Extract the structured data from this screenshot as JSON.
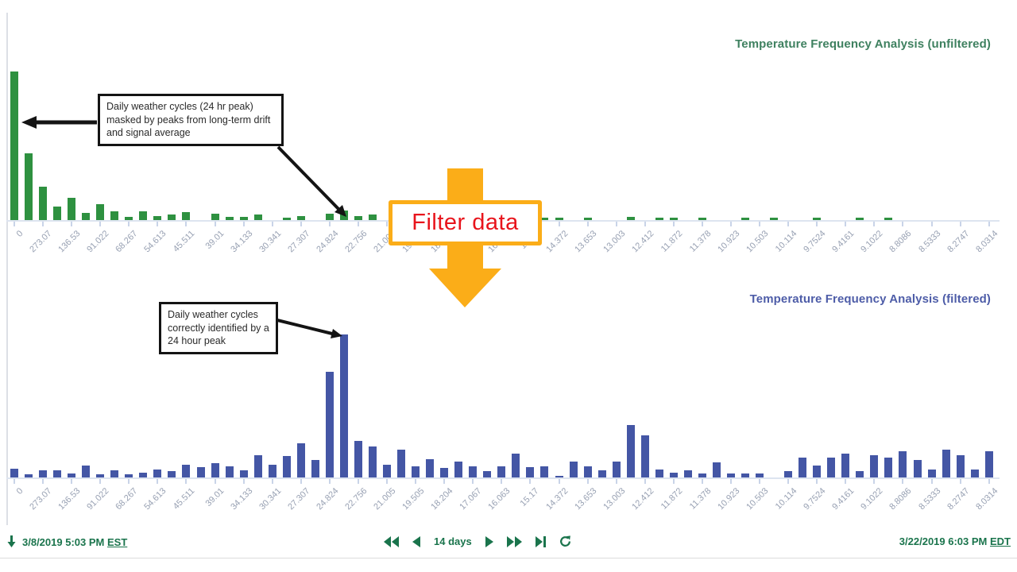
{
  "chart_data": [
    {
      "id": "unfiltered",
      "type": "bar",
      "title": "Temperature Frequency Analysis (unfiltered)",
      "bar_color": "#2e9140",
      "title_color": "#3f8160",
      "legend": "none",
      "grid": "off",
      "y_axis": "unlabeled (relative amplitude, px-estimated)",
      "x_tick_labels": [
        "0",
        "273.07",
        "136.53",
        "91.022",
        "68.267",
        "54.613",
        "45.511",
        "39.01",
        "34.133",
        "30.341",
        "27.307",
        "24.824",
        "22.756",
        "21.005",
        "19.505",
        "18.204",
        "17.067",
        "16.063",
        "15.17",
        "14.372",
        "13.653",
        "13.003",
        "12.412",
        "11.872",
        "11.378",
        "10.923",
        "10.503",
        "10.114",
        "9.7524",
        "9.4161",
        "9.1022",
        "8.8086",
        "8.5333",
        "8.2747",
        "8.0314"
      ],
      "bars_per_tick": 2,
      "values": [
        187,
        84,
        42,
        17,
        28,
        9,
        20,
        11,
        4,
        11,
        5,
        7,
        10,
        0,
        8,
        4,
        4,
        7,
        0,
        3,
        5,
        0,
        8,
        12,
        5,
        7,
        0,
        0,
        0,
        0,
        0,
        0,
        0,
        0,
        0,
        0,
        0,
        3,
        3,
        0,
        3,
        0,
        0,
        4,
        0,
        3,
        3,
        0,
        3,
        0,
        0,
        3,
        0,
        3,
        0,
        0,
        3,
        0,
        0,
        3,
        0,
        3,
        0,
        0,
        0,
        0,
        0,
        0,
        0
      ]
    },
    {
      "id": "filtered",
      "type": "bar",
      "title": "Temperature Frequency Analysis (filtered)",
      "bar_color": "#4456a5",
      "title_color": "#4e5da8",
      "legend": "none",
      "grid": "off",
      "y_axis": "unlabeled (relative amplitude, px-estimated)",
      "x_tick_labels": [
        "0",
        "273.07",
        "136.53",
        "91.022",
        "68.267",
        "54.613",
        "45.511",
        "39.01",
        "34.133",
        "30.341",
        "27.307",
        "24.824",
        "22.756",
        "21.005",
        "19.505",
        "18.204",
        "17.067",
        "16.063",
        "15.17",
        "14.372",
        "13.653",
        "13.003",
        "12.412",
        "11.872",
        "11.378",
        "10.923",
        "10.503",
        "10.114",
        "9.7524",
        "9.4161",
        "9.1022",
        "8.8086",
        "8.5333",
        "8.2747",
        "8.0314"
      ],
      "bars_per_tick": 2,
      "values": [
        11,
        4,
        9,
        9,
        5,
        15,
        4,
        9,
        4,
        6,
        10,
        8,
        16,
        13,
        18,
        14,
        9,
        28,
        16,
        27,
        43,
        22,
        133,
        180,
        46,
        39,
        16,
        35,
        14,
        23,
        12,
        20,
        14,
        8,
        14,
        30,
        13,
        14,
        2,
        20,
        14,
        9,
        20,
        66,
        53,
        10,
        6,
        9,
        5,
        19,
        5,
        5,
        5,
        0,
        8,
        25,
        15,
        25,
        30,
        8,
        28,
        25,
        33,
        22,
        10,
        35,
        28,
        10,
        33
      ]
    }
  ],
  "annotations": {
    "unfiltered_note": "Daily weather cycles (24 hr peak) masked by peaks from long-term drift and signal average",
    "filtered_note": "Daily weather cycles correctly identified by a 24 hour peak"
  },
  "filter_overlay": {
    "label": "Filter data",
    "text_color": "#e8141c",
    "arrow_color": "#FBAD18"
  },
  "toolbar": {
    "start_date": "3/8/2019 5:03 PM",
    "start_tz": "EST",
    "range_label": "14 days",
    "end_date": "3/22/2019 6:03 PM",
    "end_tz": "EDT",
    "accent_color": "#1a744c"
  }
}
